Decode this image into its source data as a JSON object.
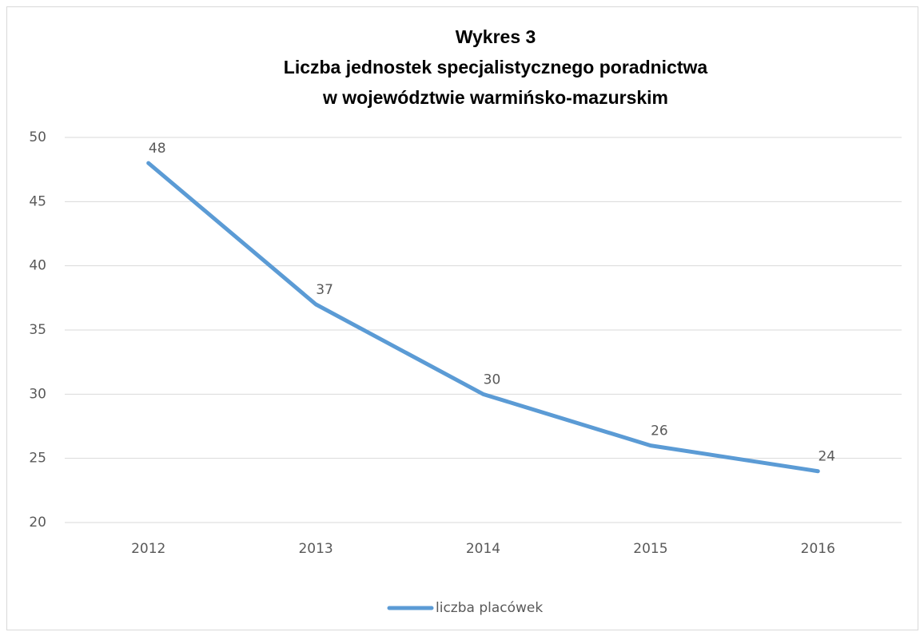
{
  "chart_data": {
    "type": "line",
    "title": [
      "Wykres 3",
      "Liczba jednostek specjalistycznego poradnictwa",
      "w województwie warmińsko-mazurskim"
    ],
    "categories": [
      "2012",
      "2013",
      "2014",
      "2015",
      "2016"
    ],
    "series": [
      {
        "name": "liczba placówek",
        "color": "#5b9bd5",
        "values": [
          48,
          37,
          30,
          26,
          24
        ]
      }
    ],
    "ylim": [
      20,
      50
    ],
    "yticks": [
      20,
      25,
      30,
      35,
      40,
      45,
      50
    ],
    "grid": true,
    "legend": "bottom"
  }
}
